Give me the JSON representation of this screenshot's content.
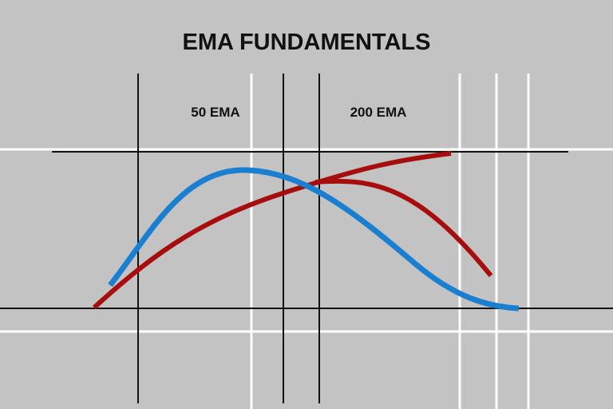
{
  "header": {
    "title": "EMA FUNDAMENTALS"
  },
  "labels": [
    "50 EMA",
    "200 EMA"
  ]
}
